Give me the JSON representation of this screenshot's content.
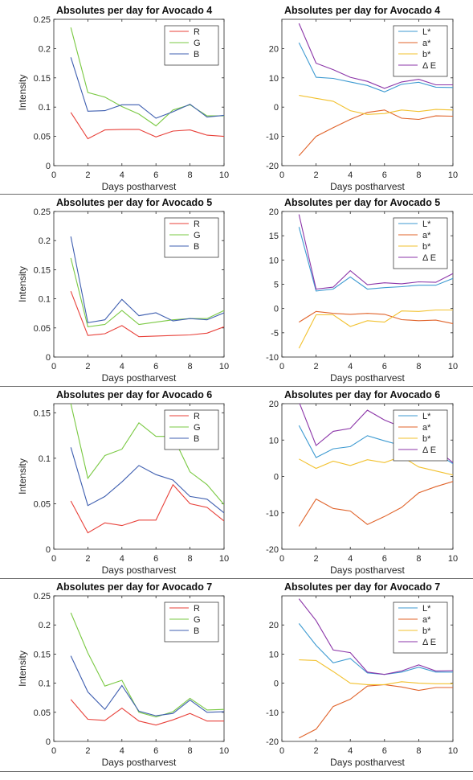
{
  "colors": {
    "R": "#e8413a",
    "G": "#7ac943",
    "B": "#3f5fb0",
    "L": "#3d9ad1",
    "a": "#e0632a",
    "b": "#f2c12e",
    "dE": "#8b35a8"
  },
  "chart_data": [
    {
      "type": "line",
      "title": "Absolutes per day for Avocado 4",
      "xlabel": "Days postharvest",
      "ylabel": "Intensity",
      "xlim": [
        0,
        10
      ],
      "ylim": [
        0,
        0.25
      ],
      "xticks": [
        0,
        2,
        4,
        6,
        8,
        10
      ],
      "yticks": [
        0,
        0.05,
        0.1,
        0.15,
        0.2,
        0.25
      ],
      "legend": "top-right",
      "x": [
        1,
        2,
        3,
        4,
        5,
        6,
        7,
        8,
        9,
        10
      ],
      "series": [
        {
          "name": "R",
          "color_key": "R",
          "values": [
            0.091,
            0.046,
            0.061,
            0.062,
            0.062,
            0.049,
            0.059,
            0.061,
            0.052,
            0.05
          ]
        },
        {
          "name": "G",
          "color_key": "G",
          "values": [
            0.236,
            0.125,
            0.117,
            0.101,
            0.088,
            0.068,
            0.095,
            0.104,
            0.085,
            0.085
          ]
        },
        {
          "name": "B",
          "color_key": "B",
          "values": [
            0.185,
            0.093,
            0.094,
            0.104,
            0.104,
            0.081,
            0.092,
            0.105,
            0.083,
            0.086
          ]
        }
      ]
    },
    {
      "type": "line",
      "title": "Absolutes per day for Avocado 4",
      "xlabel": "Days postharvest",
      "ylabel": "",
      "xlim": [
        0,
        10
      ],
      "ylim": [
        -20,
        30
      ],
      "xticks": [
        0,
        2,
        4,
        6,
        8,
        10
      ],
      "yticks": [
        -20,
        -10,
        0,
        10,
        20
      ],
      "legend": "top-right",
      "x": [
        1,
        2,
        3,
        4,
        5,
        6,
        7,
        8,
        9,
        10
      ],
      "series": [
        {
          "name": "L*",
          "color_key": "L",
          "values": [
            22,
            10.2,
            9.8,
            8.6,
            7.4,
            5.2,
            7.8,
            8.5,
            6.8,
            6.7
          ]
        },
        {
          "name": "a*",
          "color_key": "a",
          "values": [
            -16.6,
            -10,
            -7,
            -4.2,
            -1.8,
            -1,
            -3.8,
            -4.2,
            -3,
            -3.1
          ]
        },
        {
          "name": "b*",
          "color_key": "b",
          "values": [
            4,
            3,
            2,
            -1.2,
            -2.5,
            -2.2,
            -1,
            -1.5,
            -0.8,
            -1
          ]
        },
        {
          "name": "Δ E",
          "color_key": "dE",
          "values": [
            28.6,
            15,
            12.8,
            10.2,
            8.8,
            6.4,
            8.6,
            9.5,
            7.6,
            7.6
          ]
        }
      ]
    },
    {
      "type": "line",
      "title": "Absolutes per day for Avocado 5",
      "xlabel": "Days postharvest",
      "ylabel": "Intensity",
      "xlim": [
        0,
        10
      ],
      "ylim": [
        0,
        0.25
      ],
      "xticks": [
        0,
        2,
        4,
        6,
        8,
        10
      ],
      "yticks": [
        0,
        0.05,
        0.1,
        0.15,
        0.2,
        0.25
      ],
      "legend": "top-right",
      "x": [
        1,
        2,
        3,
        4,
        5,
        6,
        7,
        8,
        9,
        10
      ],
      "series": [
        {
          "name": "R",
          "color_key": "R",
          "values": [
            0.113,
            0.037,
            0.04,
            0.054,
            0.035,
            0.036,
            0.037,
            0.038,
            0.041,
            0.052
          ]
        },
        {
          "name": "G",
          "color_key": "G",
          "values": [
            0.17,
            0.052,
            0.056,
            0.08,
            0.056,
            0.06,
            0.064,
            0.066,
            0.066,
            0.08
          ]
        },
        {
          "name": "B",
          "color_key": "B",
          "values": [
            0.207,
            0.059,
            0.064,
            0.099,
            0.071,
            0.076,
            0.062,
            0.066,
            0.064,
            0.076
          ]
        }
      ]
    },
    {
      "type": "line",
      "title": "Absolutes per day for Avocado 5",
      "xlabel": "Days postharvest",
      "ylabel": "",
      "xlim": [
        0,
        10
      ],
      "ylim": [
        -10,
        20
      ],
      "xticks": [
        0,
        2,
        4,
        6,
        8,
        10
      ],
      "yticks": [
        -10,
        -5,
        0,
        5,
        10,
        15,
        20
      ],
      "legend": "top-right",
      "x": [
        1,
        2,
        3,
        4,
        5,
        6,
        7,
        8,
        9,
        10
      ],
      "series": [
        {
          "name": "L*",
          "color_key": "L",
          "values": [
            16.8,
            3.6,
            4,
            6.5,
            4,
            4.3,
            4.5,
            4.8,
            4.8,
            6.2
          ]
        },
        {
          "name": "a*",
          "color_key": "a",
          "values": [
            -2.8,
            -0.6,
            -1,
            -1.2,
            -1,
            -1.2,
            -2.3,
            -2.5,
            -2.4,
            -3.1
          ]
        },
        {
          "name": "b*",
          "color_key": "b",
          "values": [
            -8.2,
            -1.3,
            -1.3,
            -3.7,
            -2.5,
            -2.8,
            -0.5,
            -0.6,
            -0.3,
            -0.3
          ]
        },
        {
          "name": "Δ E",
          "color_key": "dE",
          "values": [
            19.4,
            4,
            4.4,
            7.8,
            4.9,
            5.3,
            5.1,
            5.5,
            5.4,
            7.2
          ]
        }
      ]
    },
    {
      "type": "line",
      "title": "Absolutes per day for Avocado 6",
      "xlabel": "Days postharvest",
      "ylabel": "Intensity",
      "xlim": [
        0,
        10
      ],
      "ylim": [
        0,
        0.16
      ],
      "xticks": [
        0,
        2,
        4,
        6,
        8,
        10
      ],
      "yticks": [
        0,
        0.05,
        0.1,
        0.15
      ],
      "legend": "top-right",
      "x": [
        1,
        2,
        3,
        4,
        5,
        6,
        7,
        8,
        9,
        10
      ],
      "series": [
        {
          "name": "R",
          "color_key": "R",
          "values": [
            0.053,
            0.018,
            0.029,
            0.026,
            0.032,
            0.032,
            0.071,
            0.05,
            0.046,
            0.031
          ]
        },
        {
          "name": "G",
          "color_key": "G",
          "values": [
            0.16,
            0.078,
            0.103,
            0.11,
            0.139,
            0.124,
            0.124,
            0.085,
            0.071,
            0.049
          ]
        },
        {
          "name": "B",
          "color_key": "B",
          "values": [
            0.112,
            0.048,
            0.058,
            0.074,
            0.092,
            0.082,
            0.076,
            0.058,
            0.055,
            0.04
          ]
        }
      ]
    },
    {
      "type": "line",
      "title": "Absolutes per day for Avocado 6",
      "xlabel": "Days postharvest",
      "ylabel": "",
      "xlim": [
        0,
        10
      ],
      "ylim": [
        -20,
        20
      ],
      "xticks": [
        0,
        2,
        4,
        6,
        8,
        10
      ],
      "yticks": [
        -20,
        -10,
        0,
        10,
        20
      ],
      "legend": "top-right",
      "x": [
        1,
        2,
        3,
        4,
        5,
        6,
        7,
        8,
        9,
        10
      ],
      "series": [
        {
          "name": "L*",
          "color_key": "L",
          "values": [
            14,
            5.2,
            7.6,
            8.2,
            11.2,
            9.8,
            8.5,
            7.5,
            6.5,
            3.5
          ]
        },
        {
          "name": "a*",
          "color_key": "a",
          "values": [
            -13.7,
            -6.2,
            -8.8,
            -9.5,
            -13.2,
            -11,
            -8.5,
            -4.5,
            -2.8,
            -1.4
          ]
        },
        {
          "name": "b*",
          "color_key": "b",
          "values": [
            4.8,
            2.2,
            4.2,
            3,
            4.6,
            3.8,
            5.5,
            2.6,
            1.5,
            0.4
          ]
        },
        {
          "name": "Δ E",
          "color_key": "dE",
          "values": [
            20.5,
            8.5,
            12.4,
            13.2,
            18.2,
            15.5,
            13.6,
            9.8,
            7.6,
            3.8
          ]
        }
      ]
    },
    {
      "type": "line",
      "title": "Absolutes per day for Avocado 7",
      "xlabel": "Days postharvest",
      "ylabel": "Intensity",
      "xlim": [
        0,
        10
      ],
      "ylim": [
        0,
        0.25
      ],
      "xticks": [
        0,
        2,
        4,
        6,
        8,
        10
      ],
      "yticks": [
        0,
        0.05,
        0.1,
        0.15,
        0.2,
        0.25
      ],
      "legend": "top-right",
      "x": [
        1,
        2,
        3,
        4,
        5,
        6,
        7,
        8,
        9,
        10
      ],
      "series": [
        {
          "name": "R",
          "color_key": "R",
          "values": [
            0.072,
            0.038,
            0.036,
            0.057,
            0.035,
            0.028,
            0.037,
            0.048,
            0.035,
            0.035
          ]
        },
        {
          "name": "G",
          "color_key": "G",
          "values": [
            0.221,
            0.152,
            0.095,
            0.105,
            0.05,
            0.042,
            0.051,
            0.074,
            0.054,
            0.055
          ]
        },
        {
          "name": "B",
          "color_key": "B",
          "values": [
            0.147,
            0.085,
            0.055,
            0.096,
            0.052,
            0.044,
            0.048,
            0.071,
            0.05,
            0.051
          ]
        }
      ]
    },
    {
      "type": "line",
      "title": "Absolutes per day for Avocado 7",
      "xlabel": "Days postharvest",
      "ylabel": "",
      "xlim": [
        0,
        10
      ],
      "ylim": [
        -20,
        30
      ],
      "xticks": [
        0,
        2,
        4,
        6,
        8,
        10
      ],
      "yticks": [
        -20,
        -10,
        0,
        10,
        20
      ],
      "legend": "top-right",
      "x": [
        1,
        2,
        3,
        4,
        5,
        6,
        7,
        8,
        9,
        10
      ],
      "series": [
        {
          "name": "L*",
          "color_key": "L",
          "values": [
            20.5,
            13,
            7,
            8.5,
            3.5,
            3,
            3.8,
            5.5,
            3.8,
            3.8
          ]
        },
        {
          "name": "a*",
          "color_key": "a",
          "values": [
            -18.8,
            -15.8,
            -8,
            -5.5,
            -1,
            -0.5,
            -1.3,
            -2.5,
            -1.5,
            -1.5
          ]
        },
        {
          "name": "b*",
          "color_key": "b",
          "values": [
            8,
            7.8,
            4,
            0,
            -0.5,
            -0.5,
            0.5,
            0,
            -0.2,
            -0.2
          ]
        },
        {
          "name": "Δ E",
          "color_key": "dE",
          "values": [
            29,
            21.5,
            11.4,
            10.5,
            3.8,
            3,
            4.2,
            6.3,
            4.2,
            4.3
          ]
        }
      ]
    }
  ]
}
